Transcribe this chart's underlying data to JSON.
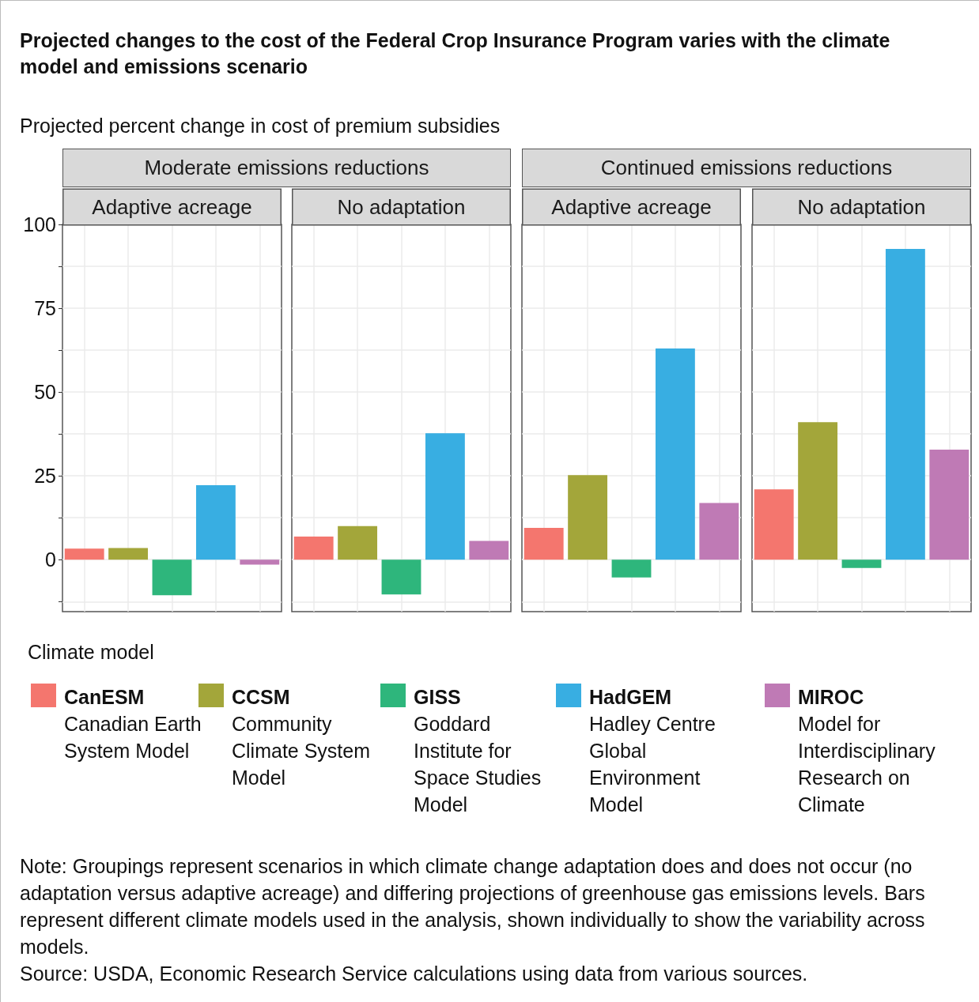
{
  "chart_data": {
    "type": "bar",
    "title": "Projected changes to the cost of the Federal Crop Insurance Program varies with the climate model and emissions scenario",
    "ylabel": "Projected percent change in cost of premium subsidies",
    "legend_title": "Climate model",
    "legend": "bottom",
    "grid": true,
    "annotations": [
      "Moderate emissions reductions",
      "Continued emissions reductions",
      "Note: Groupings represent scenarios in which climate change adaptation does and does not occur (no adaptation versus adaptive acreage) and differing projections of greenhouse gas emissions levels. Bars represent different climate models used in the analysis, shown individually to show the variability across models.",
      "Source: USDA, Economic Research Service calculations using data from various sources."
    ],
    "categories": [
      "Adaptive acreage",
      "No adaptation",
      "Adaptive acreage",
      "No adaptation"
    ],
    "ylim": [
      -15.5,
      100
    ],
    "yticks": [
      {
        "value": -12.5,
        "label": null
      },
      0,
      {
        "value": 12.5,
        "label": null
      },
      25,
      {
        "value": 37.5,
        "label": null
      },
      50,
      {
        "value": 62.5,
        "label": null
      },
      75,
      {
        "value": 87.5,
        "label": null
      },
      100
    ],
    "series": [
      {
        "name": "CanESM\nCanadian Earth System Model",
        "color": "#f4766e",
        "values": [
          3.3,
          6.9,
          9.5,
          21.0
        ]
      },
      {
        "name": "CCSM\nCommunity Climate System Model",
        "color": "#a3a63a",
        "values": [
          3.5,
          10.0,
          25.2,
          41.0
        ]
      },
      {
        "name": "GISS\nGoddard Institute for Space Studies Model",
        "color": "#2eb67c",
        "values": [
          -10.6,
          -10.4,
          -5.3,
          -2.5
        ]
      },
      {
        "name": "HadGEM\nHadley Centre Global Environment Model",
        "color": "#38aee2",
        "values": [
          22.2,
          37.7,
          63.0,
          92.7
        ]
      },
      {
        "name": "MIROC\nModel for Interdisciplinary Research on Climate",
        "color": "#bf7ab5",
        "values": [
          -1.5,
          5.6,
          16.9,
          32.8
        ]
      }
    ]
  }
}
